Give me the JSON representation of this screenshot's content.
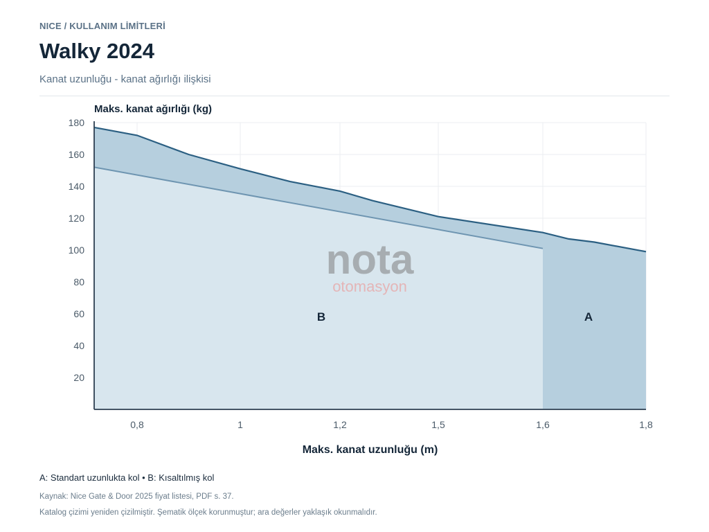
{
  "header": {
    "eyebrow": "NICE / KULLANIM LİMİTLERİ",
    "title": "Walky 2024",
    "subtitle": "Kanat uzunluğu - kanat ağırlığı ilişkisi"
  },
  "watermark": {
    "main": "nota",
    "sub": "otomasyon"
  },
  "chart_data": {
    "type": "area",
    "ylabel": "Maks. kanat ağırlığı (kg)",
    "xlabel": "Maks. kanat uzunluğu (m)",
    "x_ticks": [
      "0,8",
      "1",
      "1,2",
      "1,5",
      "1,6",
      "1,8"
    ],
    "y_ticks": [
      20,
      40,
      60,
      80,
      100,
      120,
      140,
      160,
      180
    ],
    "ylim": [
      0,
      180
    ],
    "grid": true,
    "x_scale_note": "schematic (non-linear)",
    "series": [
      {
        "name": "A",
        "x": [
          0.72,
          0.8,
          0.9,
          1.0,
          1.1,
          1.2,
          1.3,
          1.4,
          1.5,
          1.6,
          1.65,
          1.7,
          1.8
        ],
        "values": [
          177,
          172,
          160,
          151,
          143,
          137,
          131,
          126,
          121,
          111,
          107,
          105,
          99
        ]
      },
      {
        "name": "B",
        "x": [
          0.72,
          1.6
        ],
        "values": [
          152,
          101
        ]
      }
    ],
    "region_labels": [
      "B",
      "A"
    ],
    "colors": {
      "area_a": "#b6cfde",
      "area_b": "#d8e6ee",
      "line_a": "#2b5f82",
      "line_b": "#6e95b1",
      "axis": "#2c3e50",
      "grid": "#ebeef1"
    }
  },
  "footer": {
    "legend": "A: Standart uzunlukta kol • B: Kısaltılmış kol",
    "source": "Kaynak: Nice Gate & Door 2025 fiyat listesi, PDF s. 37.",
    "disclaimer": "Katalog çizimi yeniden çizilmiştir. Şematik ölçek korunmuştur; ara değerler yaklaşık okunmalıdır."
  }
}
